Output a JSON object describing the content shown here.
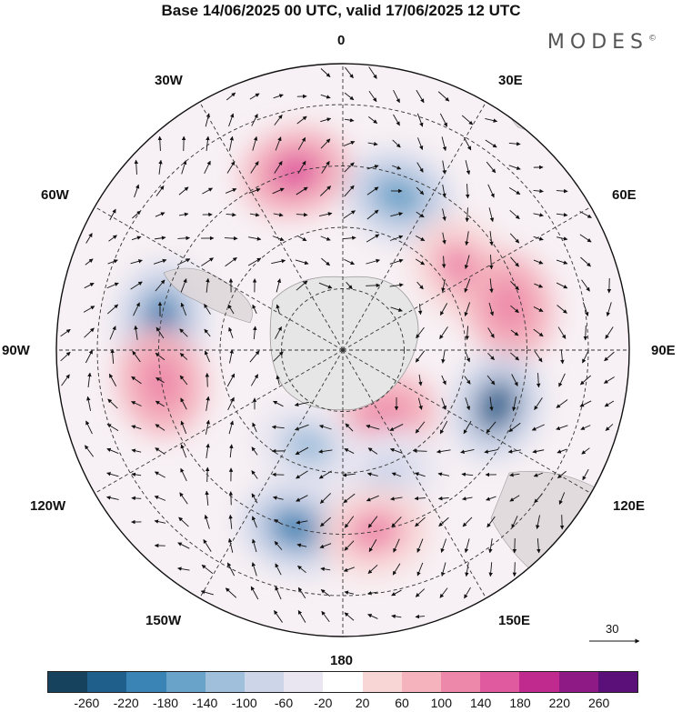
{
  "header": {
    "title": "Base 14/06/2025 00 UTC, valid 17/06/2025 12 UTC",
    "brand": "MODES",
    "brand_mark": "©"
  },
  "map": {
    "projection": "south-polar-stereographic",
    "longitude_labels": {
      "top": "0",
      "top_left": "30W",
      "top_right": "30E",
      "left_upper": "60W",
      "right_upper": "60E",
      "left": "90W",
      "right": "90E",
      "left_lower": "120W",
      "right_lower": "120E",
      "bottom_left": "150W",
      "bottom_right": "150E",
      "bottom": "180"
    },
    "reference_vector": {
      "label": "30"
    },
    "colors": {
      "land": "#e6e6e6",
      "grid": "#333333",
      "arrow": "#111111"
    },
    "anomalies": [
      {
        "label": "positive",
        "lon": -15,
        "lat": -45,
        "value": 180
      },
      {
        "label": "negative",
        "lon": 20,
        "lat": -50,
        "value": -160
      },
      {
        "label": "positive",
        "lon": 55,
        "lat": -55,
        "value": 120
      },
      {
        "label": "positive",
        "lon": 75,
        "lat": -48,
        "value": 140
      },
      {
        "label": "negative",
        "lon": -80,
        "lat": -45,
        "value": -180
      },
      {
        "label": "positive",
        "lon": -100,
        "lat": -45,
        "value": 140
      },
      {
        "label": "negative",
        "lon": 110,
        "lat": -50,
        "value": -220
      },
      {
        "label": "positive",
        "lon": 150,
        "lat": -70,
        "value": 140
      },
      {
        "label": "negative",
        "lon": -160,
        "lat": -65,
        "value": -120
      },
      {
        "label": "negative",
        "lon": -165,
        "lat": -45,
        "value": -200
      },
      {
        "label": "negative",
        "lon": 160,
        "lat": -58,
        "value": -80
      },
      {
        "label": "positive",
        "lon": 170,
        "lat": -45,
        "value": 120
      }
    ]
  },
  "colorbar": {
    "ticks": [
      "-260",
      "-220",
      "-180",
      "-140",
      "-100",
      "-60",
      "-20",
      "20",
      "60",
      "100",
      "140",
      "180",
      "220",
      "260"
    ],
    "colors": [
      "#17425e",
      "#1e5f8c",
      "#3a84b5",
      "#6aa3c9",
      "#a0bfdb",
      "#cdd5e9",
      "#e9e6f1",
      "#ffffff",
      "#f8d6d6",
      "#f4b3bd",
      "#ee88aa",
      "#e05aa0",
      "#c02a8e",
      "#8e1a86",
      "#5a1078"
    ]
  }
}
